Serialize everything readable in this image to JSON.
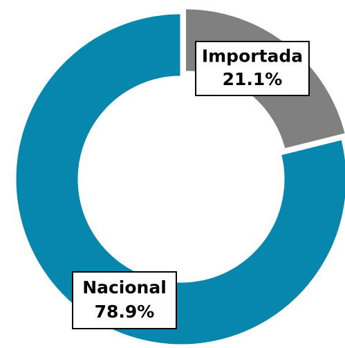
{
  "chart_data": {
    "type": "donut",
    "categories": [
      "Importada",
      "Nacional"
    ],
    "values": [
      21.1,
      78.9
    ],
    "value_labels": [
      "21.1%",
      "78.9%"
    ],
    "colors": [
      "#808080",
      "#0787ad"
    ]
  }
}
